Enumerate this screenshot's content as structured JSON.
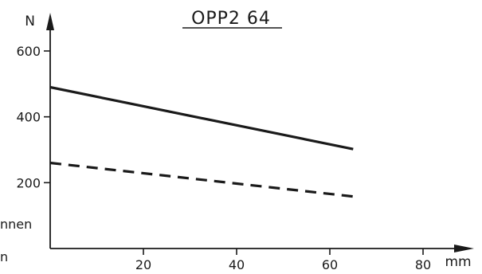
{
  "chart_data": {
    "type": "line",
    "title": "OPP2  64",
    "xlabel": "mm",
    "ylabel": "N",
    "xlim": [
      0,
      80
    ],
    "ylim": [
      0,
      600
    ],
    "x_ticks": [
      20,
      40,
      60,
      80
    ],
    "y_ticks": [
      200,
      400,
      600
    ],
    "grid": false,
    "series": [
      {
        "style": "solid",
        "color": "#1a1a1a",
        "x": [
          0,
          65
        ],
        "y": [
          490,
          302
        ]
      },
      {
        "style": "dashed",
        "color": "#1a1a1a",
        "x": [
          0,
          65
        ],
        "y": [
          260,
          158
        ]
      }
    ],
    "side_labels": [
      "nnen",
      "n"
    ]
  }
}
